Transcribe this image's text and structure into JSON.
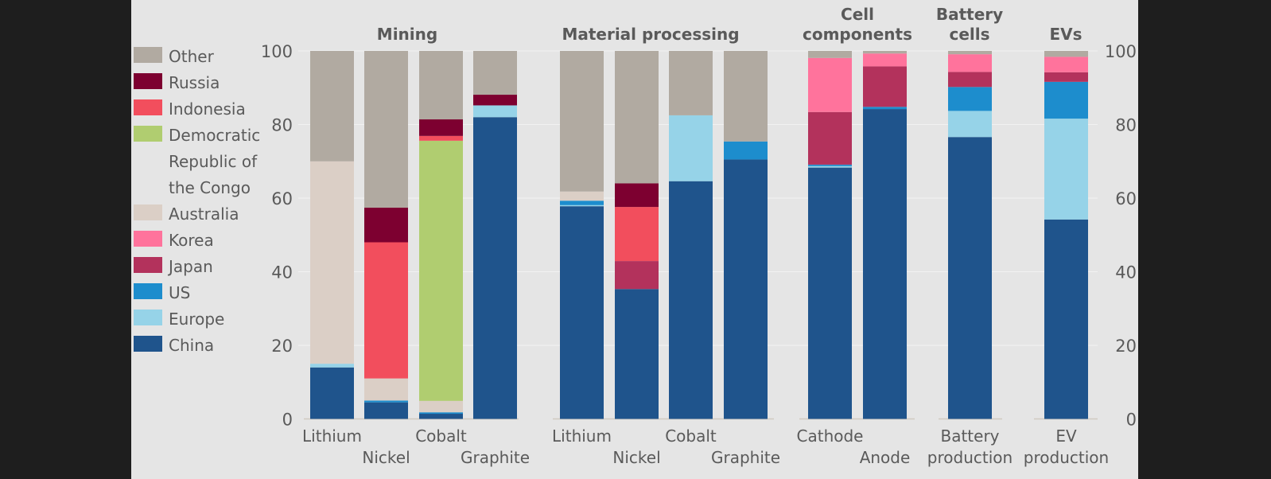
{
  "chart_data": {
    "type": "bar",
    "stacked": true,
    "title": "",
    "ylabel": "",
    "xlabel": "",
    "ylim": [
      0,
      100
    ],
    "yticks": [
      0,
      20,
      40,
      60,
      80,
      100
    ],
    "axis_sides": [
      "left",
      "right"
    ],
    "legend_placement": "left",
    "legend": [
      {
        "name": "Other",
        "color": "#b1aaa1"
      },
      {
        "name": "Russia",
        "color": "#7d0030"
      },
      {
        "name": "Indonesia",
        "color": "#f24e5d"
      },
      {
        "name": "Democratic Republic of the Congo",
        "label_lines": [
          "Democratic",
          "Republic of",
          "the Congo"
        ],
        "color": "#b0cd70"
      },
      {
        "name": "Australia",
        "color": "#dbcfc6"
      },
      {
        "name": "Korea",
        "color": "#ff739c"
      },
      {
        "name": "Japan",
        "color": "#b3325c"
      },
      {
        "name": "US",
        "color": "#1d8dcd"
      },
      {
        "name": "Europe",
        "color": "#96d3e8"
      },
      {
        "name": "China",
        "color": "#1f548c"
      }
    ],
    "stack_order": [
      "China",
      "Europe",
      "US",
      "Japan",
      "Korea",
      "Australia",
      "Democratic Republic of the Congo",
      "Indonesia",
      "Russia",
      "Other"
    ],
    "groups": [
      {
        "title_lines": [
          "Mining"
        ],
        "bars": [
          {
            "label": "Lithium",
            "label_row": 1,
            "values": {
              "China": 14,
              "Europe": 1,
              "Australia": 55,
              "Other": 30
            }
          },
          {
            "label": "Nickel",
            "label_row": 2,
            "values": {
              "China": 4.5,
              "US": 0.5,
              "Australia": 6,
              "Indonesia": 37,
              "Russia": 9.4,
              "Other": 42.6
            }
          },
          {
            "label": "Cobalt",
            "label_row": 1,
            "values": {
              "China": 1.4,
              "US": 0.4,
              "Australia": 3.1,
              "Democratic Republic of the Congo": 70.7,
              "Indonesia": 1.3,
              "Russia": 4.5,
              "Other": 18.6
            }
          },
          {
            "label": "Graphite",
            "label_row": 2,
            "values": {
              "China": 82,
              "Europe": 3.2,
              "Russia": 2.9,
              "Other": 11.9
            }
          }
        ]
      },
      {
        "title_lines": [
          "Material processing"
        ],
        "bars": [
          {
            "label": "Lithium",
            "label_row": 1,
            "values": {
              "China": 57.8,
              "US": 1.2,
              "Europe": 0.3,
              "Australia": 2.5,
              "Other": 38.2
            }
          },
          {
            "label": "Nickel",
            "label_row": 2,
            "values": {
              "China": 35.3,
              "Japan": 7.6,
              "Indonesia": 14.7,
              "Russia": 6.4,
              "Other": 36
            }
          },
          {
            "label": "Cobalt",
            "label_row": 1,
            "values": {
              "China": 64.6,
              "Europe": 17.9,
              "Other": 17.5
            }
          },
          {
            "label": "Graphite",
            "label_row": 2,
            "values": {
              "China": 70.5,
              "US": 4.9,
              "Other": 24.6
            }
          }
        ]
      },
      {
        "title_lines": [
          "Cell",
          "components"
        ],
        "bars": [
          {
            "label": "Cathode",
            "label_row": 1,
            "values": {
              "China": 68.3,
              "Europe": 0.4,
              "US": 0.4,
              "Japan": 14.3,
              "Korea": 14.7,
              "Other": 1.9
            }
          },
          {
            "label": "Anode",
            "label_row": 2,
            "values": {
              "China": 84.2,
              "US": 0.6,
              "Japan": 11,
              "Korea": 3.5,
              "Other": 0.7
            }
          }
        ]
      },
      {
        "title_lines": [
          "Battery",
          "cells"
        ],
        "bars": [
          {
            "label": "Battery production",
            "label_lines": [
              "Battery",
              "production"
            ],
            "label_row": 1,
            "values": {
              "China": 76.6,
              "Europe": 7.1,
              "US": 6.5,
              "Japan": 4.1,
              "Korea": 4.8,
              "Other": 0.9
            }
          }
        ]
      },
      {
        "title_lines": [
          "EVs"
        ],
        "bars": [
          {
            "label": "EV production",
            "label_lines": [
              "EV",
              "production"
            ],
            "label_row": 1,
            "values": {
              "China": 54.2,
              "Europe": 27.4,
              "US": 10,
              "Japan": 2.6,
              "Korea": 4.2,
              "Other": 1.6
            }
          }
        ]
      }
    ]
  }
}
